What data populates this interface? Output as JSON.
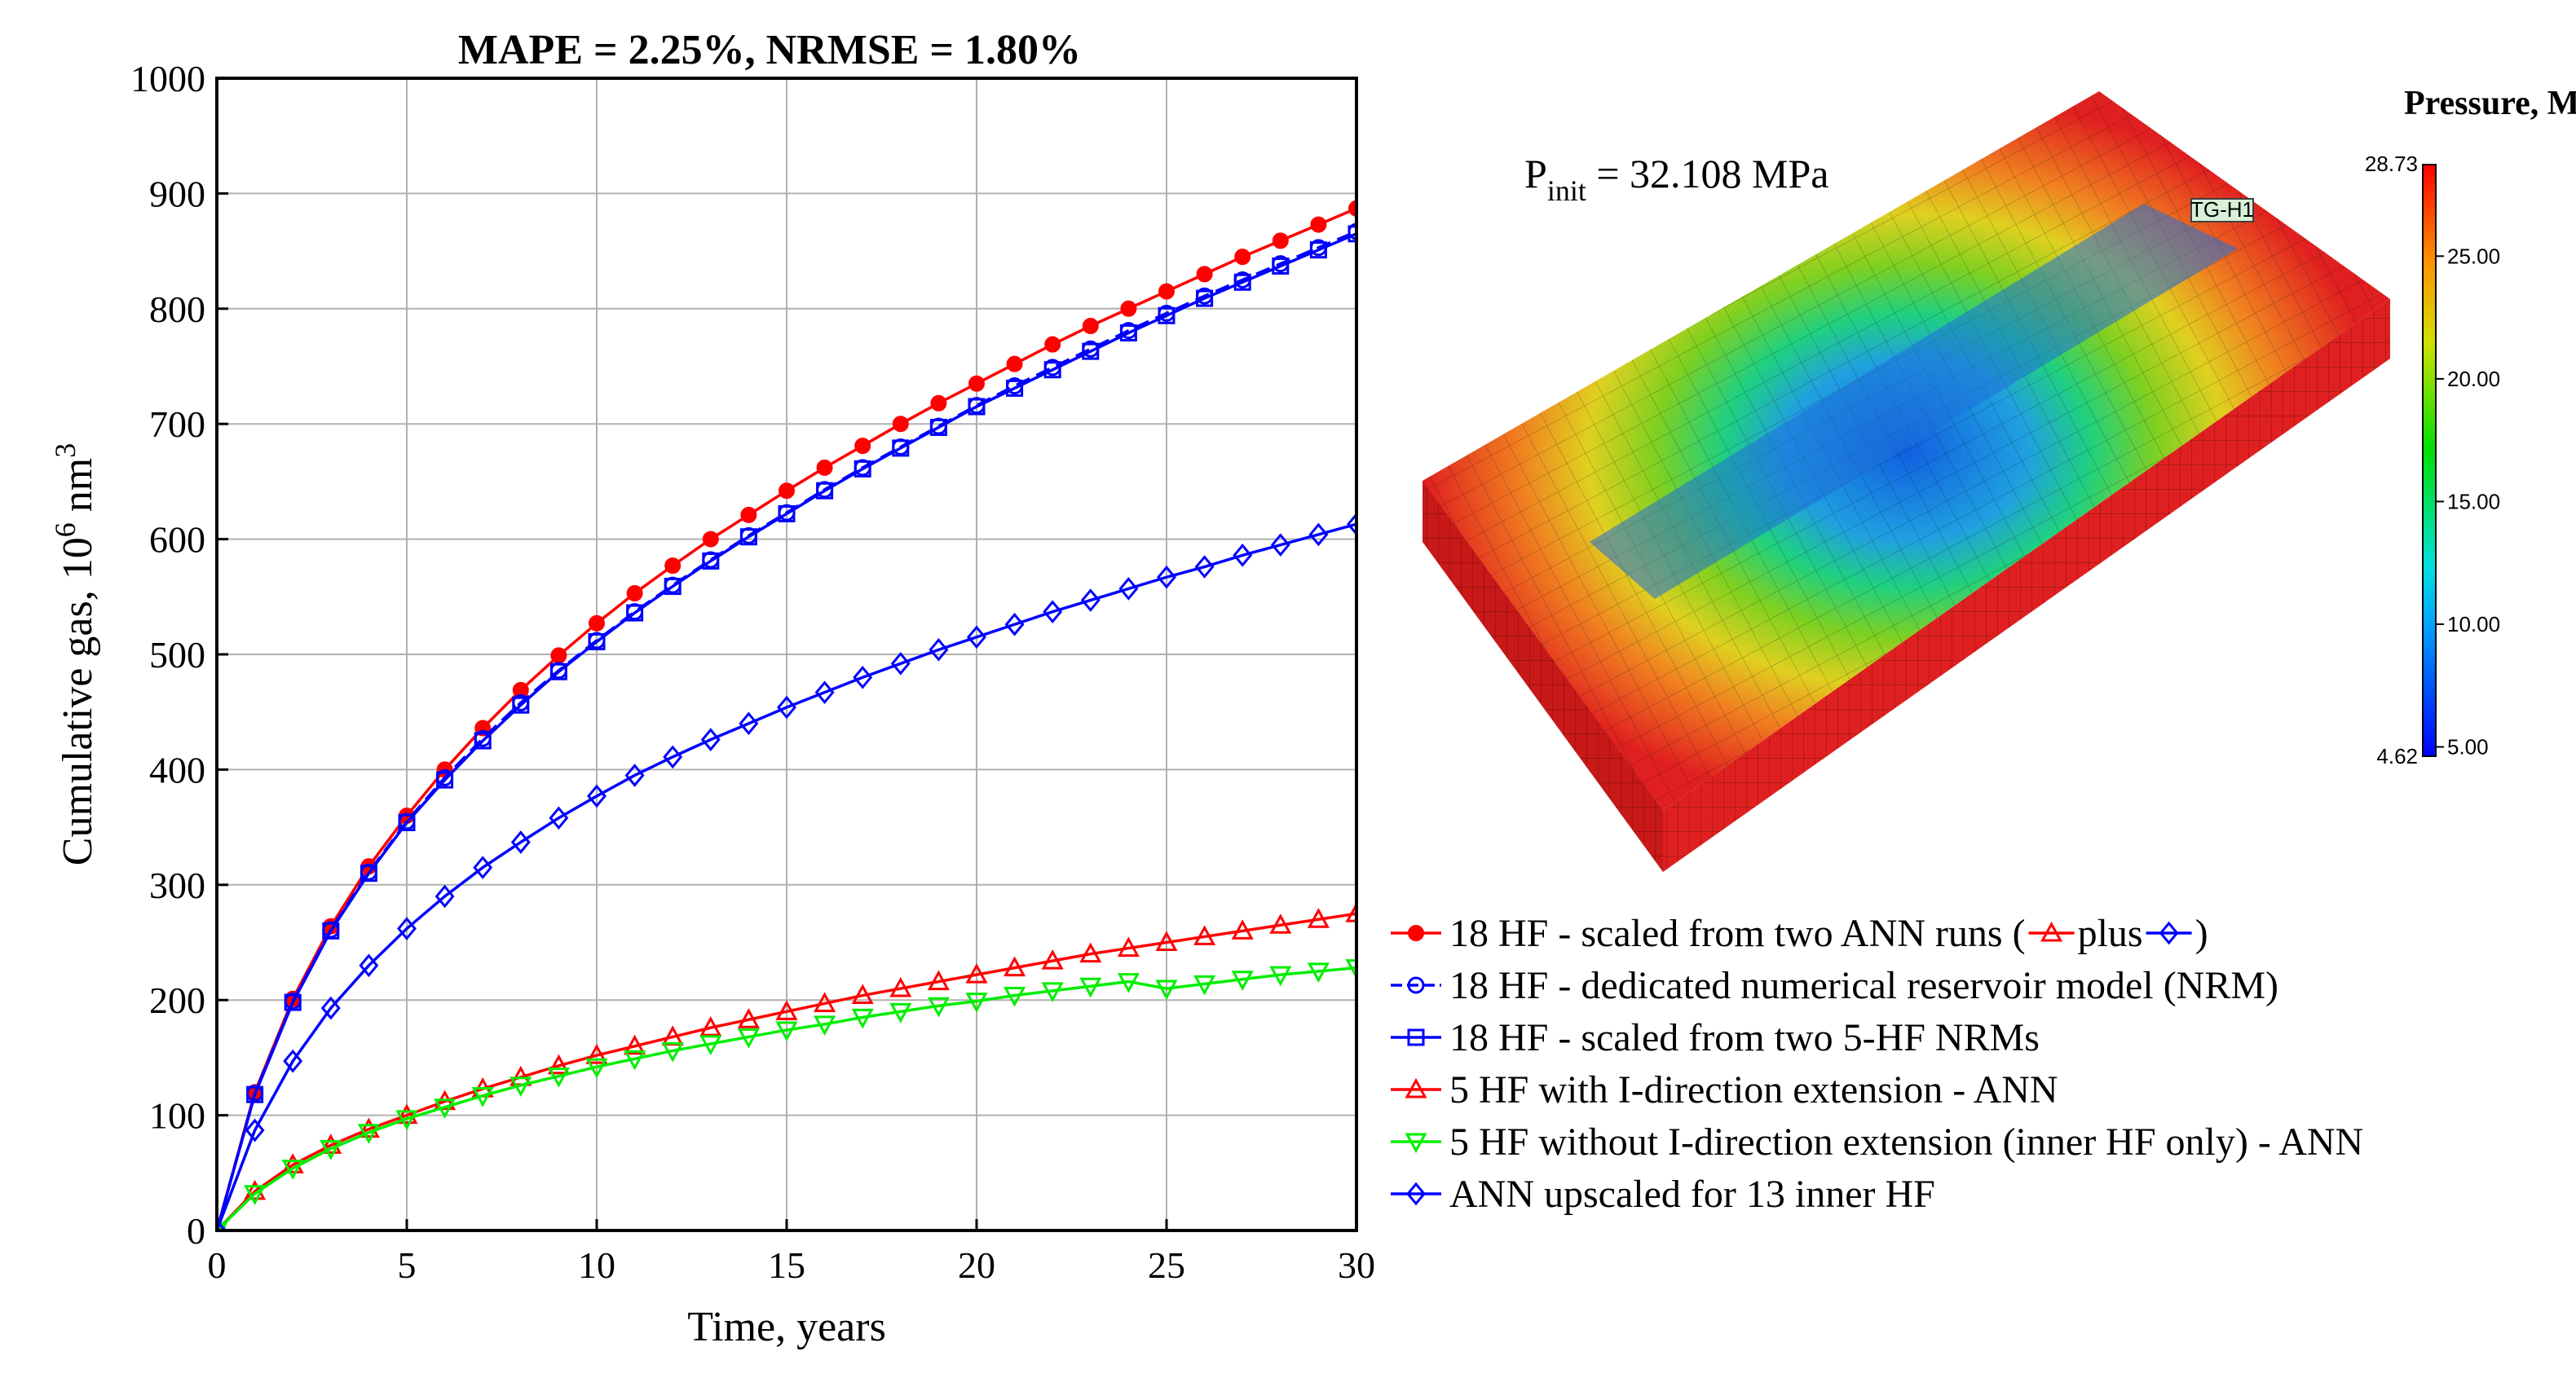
{
  "chart_data": {
    "type": "line",
    "title": "MAPE = 2.25%, NRMSE = 1.80%",
    "xlabel": "Time, years",
    "ylabel_main": "Cumulative gas, 10",
    "ylabel_sup1": "6",
    "ylabel_mid": " nm",
    "ylabel_sup2": "3",
    "xlim": [
      0,
      30
    ],
    "ylim": [
      0,
      1000
    ],
    "xticks": [
      "0",
      "5",
      "10",
      "15",
      "20",
      "25",
      "30"
    ],
    "yticks": [
      "0",
      "100",
      "200",
      "300",
      "400",
      "500",
      "600",
      "700",
      "800",
      "900",
      "1000"
    ],
    "x": [
      0,
      1,
      2,
      3,
      4,
      5,
      6,
      7,
      8,
      9,
      10,
      11,
      12,
      13,
      14,
      15,
      16,
      17,
      18,
      19,
      20,
      21,
      22,
      23,
      24,
      25,
      26,
      27,
      28,
      29,
      30
    ],
    "grid": true,
    "series": [
      {
        "name": "18 HF - scaled from two ANN runs (",
        "legend_mid": "plus",
        "legend_end": ")",
        "color": "#ff0000",
        "marker": "dot",
        "dashed": false,
        "values": [
          0,
          120,
          201,
          264,
          316,
          360,
          400,
          436,
          469,
          499,
          527,
          553,
          577,
          600,
          621,
          642,
          662,
          681,
          700,
          718,
          735,
          752,
          769,
          785,
          800,
          815,
          830,
          845,
          859,
          873,
          887
        ]
      },
      {
        "name": "18 HF - dedicated numerical reservoir model (NRM)",
        "color": "#0000ff",
        "marker": "circle",
        "dashed": true,
        "values": [
          0,
          119,
          199,
          261,
          311,
          355,
          393,
          427,
          458,
          486,
          512,
          537,
          560,
          582,
          603,
          623,
          643,
          662,
          680,
          698,
          716,
          733,
          749,
          765,
          781,
          796,
          811,
          825,
          839,
          853,
          867
        ]
      },
      {
        "name": "18 HF - scaled from two 5-HF NRMs",
        "color": "#0000ff",
        "marker": "square",
        "dashed": false,
        "values": [
          0,
          118,
          198,
          260,
          310,
          354,
          391,
          425,
          456,
          485,
          511,
          536,
          559,
          581,
          602,
          622,
          642,
          661,
          679,
          697,
          715,
          731,
          747,
          763,
          779,
          794,
          809,
          823,
          837,
          851,
          865
        ]
      },
      {
        "name": "5 HF with I-direction extension - ANN",
        "color": "#ff0000",
        "marker": "triangle-up",
        "dashed": false,
        "values": [
          0,
          34,
          57,
          74,
          88,
          100,
          112,
          123,
          133,
          143,
          152,
          160,
          168,
          176,
          183,
          190,
          197,
          204,
          210,
          216,
          222,
          228,
          234,
          240,
          245,
          250,
          255,
          260,
          265,
          270,
          275
        ]
      },
      {
        "name": "5 HF without I-direction extension (inner HF only) - ANN",
        "color": "#00ee00",
        "marker": "triangle-down",
        "dashed": false,
        "values": [
          0,
          32,
          54,
          71,
          85,
          97,
          107,
          117,
          126,
          134,
          142,
          149,
          156,
          162,
          168,
          174,
          179,
          185,
          190,
          195,
          199,
          204,
          208,
          212,
          216,
          210,
          214,
          218,
          222,
          225,
          228
        ]
      },
      {
        "name": "ANN upscaled for 13 inner HF",
        "color": "#0000ff",
        "marker": "diamond",
        "dashed": false,
        "values": [
          0,
          87,
          147,
          193,
          230,
          262,
          290,
          315,
          337,
          358,
          377,
          395,
          411,
          426,
          440,
          454,
          467,
          480,
          492,
          504,
          515,
          526,
          537,
          547,
          557,
          567,
          576,
          586,
          595,
          604,
          613
        ]
      }
    ]
  },
  "model_view": {
    "pinit_main": "P",
    "pinit_sub": "init",
    "pinit_value": " = 32.108 MPa",
    "well_label": "TG-H1",
    "colorbar_title": "Pressure, MPa",
    "colorbar_max": "28.73",
    "colorbar_min": "4.62",
    "colorbar_ticks": [
      "25.00",
      "20.00",
      "15.00",
      "10.00",
      "5.00"
    ]
  }
}
